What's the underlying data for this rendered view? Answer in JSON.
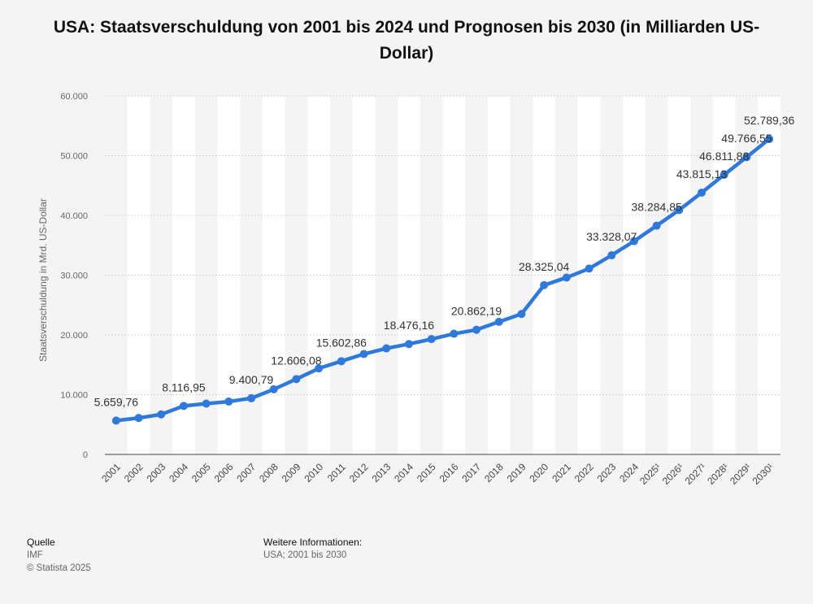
{
  "title": "USA: Staatsverschuldung von 2001 bis 2024 und Prognosen bis 2030 (in Milliarden US-Dollar)",
  "footer": {
    "source_heading": "Quelle",
    "source": "IMF",
    "copyright": "© Statista 2025",
    "info_heading": "Weitere Informationen:",
    "info": "USA; 2001 bis 2030"
  },
  "colors": {
    "line": "#2f79db",
    "band": "#ffffff",
    "background": "#f4f4f4"
  },
  "chart_data": {
    "type": "line",
    "title": "USA: Staatsverschuldung von 2001 bis 2024 und Prognosen bis 2030 (in Milliarden US-Dollar)",
    "xlabel": "",
    "ylabel": "Staatsverschuldung in Mrd. US-Dollar",
    "ylim": [
      0,
      60000
    ],
    "yticks": [
      0,
      10000,
      20000,
      30000,
      40000,
      50000,
      60000
    ],
    "ytick_labels": [
      "0",
      "10.000",
      "20.000",
      "30.000",
      "40.000",
      "50.000",
      "60.000"
    ],
    "grid": true,
    "categories": [
      "2001",
      "2002",
      "2003",
      "2004",
      "2005",
      "2006",
      "2007",
      "2008",
      "2009",
      "2010",
      "2011",
      "2012",
      "2013",
      "2014",
      "2015",
      "2016",
      "2017",
      "2018",
      "2019",
      "2020",
      "2021",
      "2022",
      "2023",
      "2024",
      "2025¹",
      "2026¹",
      "2027¹",
      "2028¹",
      "2029¹",
      "2030¹"
    ],
    "values": [
      5659.76,
      6100,
      6700,
      8116.95,
      8500,
      8850,
      9400.79,
      10900,
      12606.08,
      14400,
      15602.86,
      16800,
      17750,
      18476.16,
      19300,
      20200,
      20862.19,
      22200,
      23500,
      28325.04,
      29600,
      31100,
      33328.07,
      35700,
      38284.85,
      40900,
      43815.13,
      46811.88,
      49766.55,
      52789.36
    ],
    "labels": [
      "5.659,76",
      "",
      "",
      "8.116,95",
      "",
      "",
      "9.400,79",
      "",
      "12.606,08",
      "",
      "15.602,86",
      "",
      "",
      "18.476,16",
      "",
      "",
      "20.862,19",
      "",
      "",
      "28.325,04",
      "",
      "",
      "33.328,07",
      "",
      "38.284,85",
      "",
      "43.815,13",
      "46.811,88",
      "49.766,55",
      "52.789,36"
    ]
  }
}
